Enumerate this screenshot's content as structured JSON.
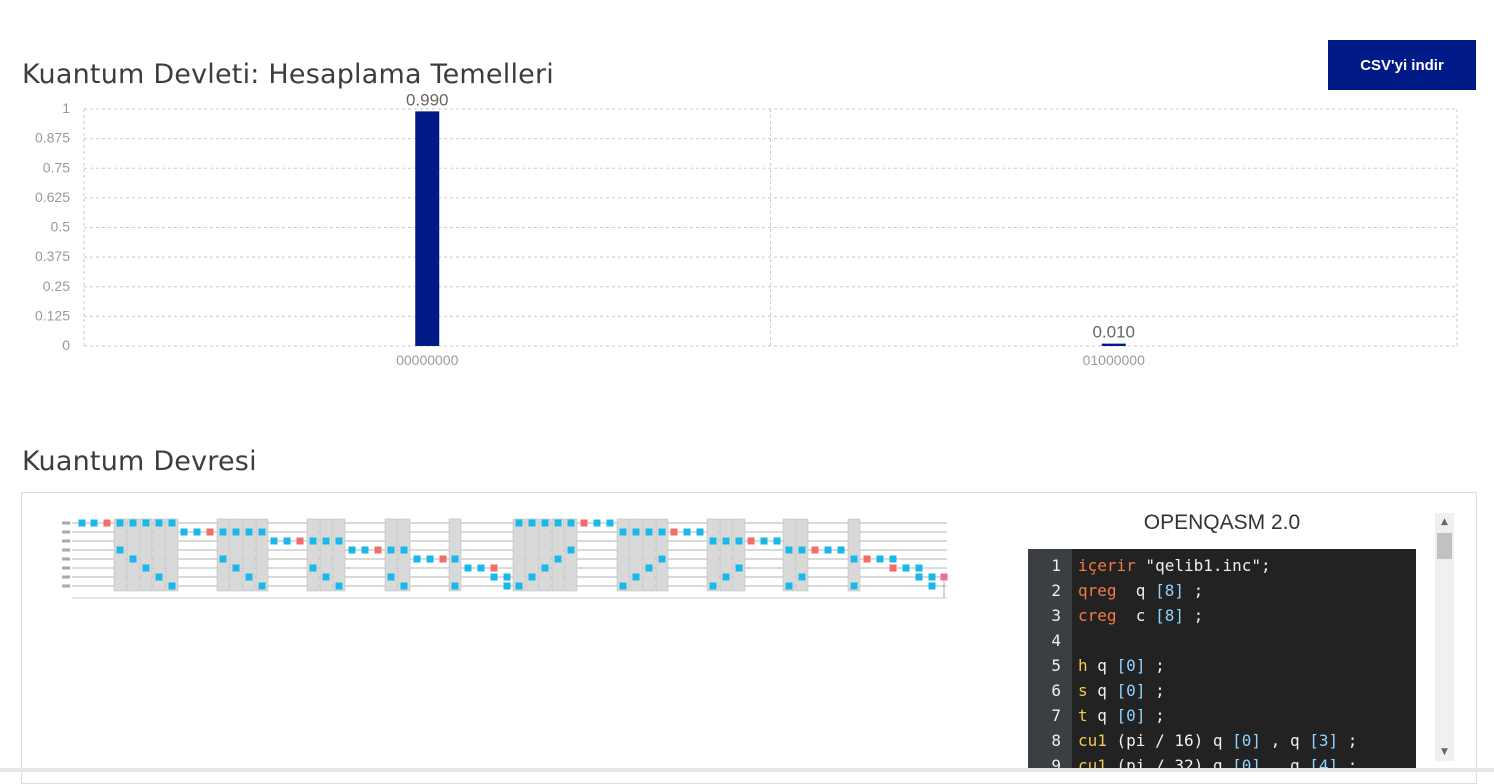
{
  "state_section": {
    "title": "Kuantum Devleti: Hesaplama Temelleri",
    "download_button": "CSV'yi indir"
  },
  "chart_data": {
    "type": "bar",
    "categories": [
      "00000000",
      "01000000"
    ],
    "values": [
      0.99,
      0.01
    ],
    "data_labels": [
      "0.990",
      "0.010"
    ],
    "yticks": [
      "0",
      "0.125",
      "0.25",
      "0.375",
      "0.5",
      "0.625",
      "0.75",
      "0.875",
      "1"
    ],
    "ylim": [
      0,
      1
    ],
    "grid": true,
    "bar_color": "#001b87"
  },
  "circuit_section": {
    "title": "Kuantum Devresi",
    "qasm_title": "OPENQASM 2.0"
  },
  "colors": {
    "gate_cyan": "#1ab7ea",
    "gate_red": "#f46b6b",
    "gate_pink": "#f06ba6",
    "barrier_grey": "#d9d9d9",
    "accent": "#001b87"
  },
  "editor": {
    "lines": [
      {
        "n": "1",
        "tokens": [
          {
            "t": "içerir",
            "c": "kw"
          },
          {
            "t": " \"qelib1.inc\";",
            "c": "pun"
          }
        ]
      },
      {
        "n": "2",
        "tokens": [
          {
            "t": "qreg",
            "c": "kw"
          },
          {
            "t": "  q ",
            "c": "pun"
          },
          {
            "t": "[8]",
            "c": "num"
          },
          {
            "t": " ;",
            "c": "pun"
          }
        ]
      },
      {
        "n": "3",
        "tokens": [
          {
            "t": "creg",
            "c": "kw"
          },
          {
            "t": "  c ",
            "c": "pun"
          },
          {
            "t": "[8]",
            "c": "num"
          },
          {
            "t": " ;",
            "c": "pun"
          }
        ]
      },
      {
        "n": "4",
        "tokens": []
      },
      {
        "n": "5",
        "tokens": [
          {
            "t": "h",
            "c": "gt"
          },
          {
            "t": " q ",
            "c": "pun"
          },
          {
            "t": "[0]",
            "c": "num"
          },
          {
            "t": " ;",
            "c": "pun"
          }
        ]
      },
      {
        "n": "6",
        "tokens": [
          {
            "t": "s",
            "c": "gt"
          },
          {
            "t": " q ",
            "c": "pun"
          },
          {
            "t": "[0]",
            "c": "num"
          },
          {
            "t": " ;",
            "c": "pun"
          }
        ]
      },
      {
        "n": "7",
        "tokens": [
          {
            "t": "t",
            "c": "gt"
          },
          {
            "t": " q ",
            "c": "pun"
          },
          {
            "t": "[0]",
            "c": "num"
          },
          {
            "t": " ;",
            "c": "pun"
          }
        ]
      },
      {
        "n": "8",
        "tokens": [
          {
            "t": "cu1",
            "c": "gt"
          },
          {
            "t": " (pi / 16) q ",
            "c": "pun"
          },
          {
            "t": "[0]",
            "c": "num"
          },
          {
            "t": " , q ",
            "c": "pun"
          },
          {
            "t": "[3]",
            "c": "num"
          },
          {
            "t": " ;",
            "c": "pun"
          }
        ]
      },
      {
        "n": "9",
        "tokens": [
          {
            "t": "cu1",
            "c": "gt"
          },
          {
            "t": " (pi / 32) q ",
            "c": "pun"
          },
          {
            "t": "[0]",
            "c": "num"
          },
          {
            "t": " , q ",
            "c": "pun"
          },
          {
            "t": "[4]",
            "c": "num"
          },
          {
            "t": " ;",
            "c": "pun"
          }
        ]
      }
    ]
  }
}
